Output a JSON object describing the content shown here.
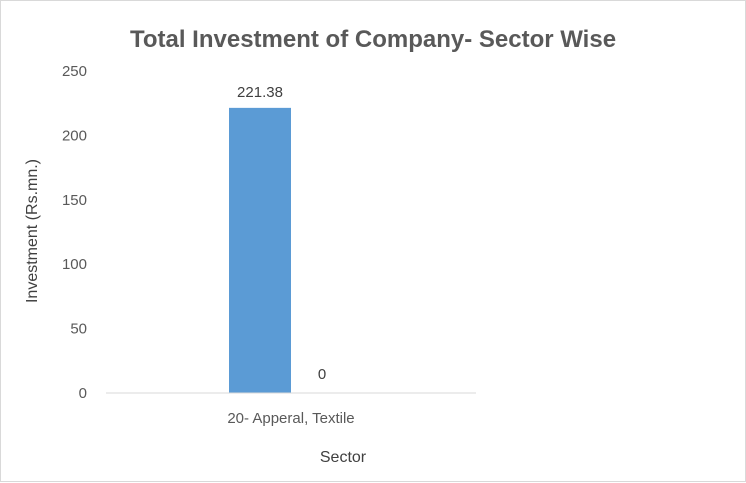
{
  "chart_data": {
    "type": "bar",
    "title": "Total Investment of Company- Sector Wise",
    "xlabel": "Sector",
    "ylabel": "Investment (Rs.mn.)",
    "categories": [
      "20- Apperal, Textile"
    ],
    "series": [
      {
        "values": [
          221.38
        ],
        "color": "#5b9bd5",
        "labels": [
          "221.38"
        ]
      },
      {
        "values": [
          0
        ],
        "color": "#ed7d31",
        "labels": [
          "0"
        ]
      }
    ],
    "ylim": [
      0,
      250
    ],
    "yticks": [
      0,
      50,
      100,
      150,
      200,
      250
    ],
    "grid": false,
    "legend": "none"
  }
}
